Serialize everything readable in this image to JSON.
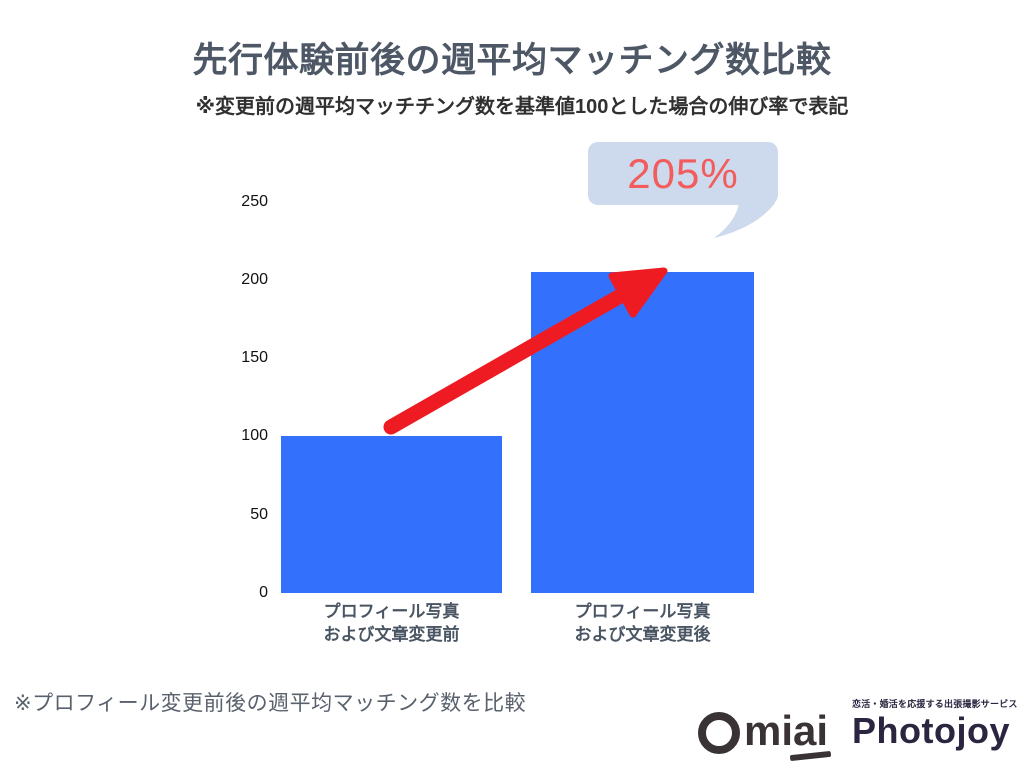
{
  "header": {
    "title": "先行体験前後の週平均マッチング数比較",
    "subtitle": "※変更前の週平均マッチチング数を基準値100とした場合の伸び率で表記"
  },
  "chart_data": {
    "type": "bar",
    "categories": [
      "プロフィール写真 および文章変更前",
      "プロフィール写真 および文章変更後"
    ],
    "category_lines": [
      [
        "プロフィール写真",
        "および文章変更前"
      ],
      [
        "プロフィール写真",
        "および文章変更後"
      ]
    ],
    "values": [
      100,
      205
    ],
    "yticks": [
      250,
      200,
      150,
      100,
      50,
      0
    ],
    "ylim": [
      0,
      250
    ],
    "grid": false,
    "legend": false,
    "annotations": [
      {
        "type": "callout-bubble",
        "text": "205%",
        "target_category": 1
      },
      {
        "type": "arrow",
        "from_category": 0,
        "to_category": 1,
        "meaning": "increase"
      }
    ]
  },
  "callout": {
    "value": "205%"
  },
  "footnote": "※プロフィール変更前後の週平均マッチング数を比較",
  "branding": {
    "omiai_logo": "Omiai",
    "omiai_part_mi": "mi",
    "omiai_part_ai": "ai",
    "photojoy_logo": "Photojoy",
    "photojoy_tagline": "恋活・婚活を応援する出張撮影サービス"
  },
  "colors": {
    "bar": "#3370FB",
    "arrow": "#EE1B23",
    "bubble": "#CDD9EC",
    "bubble-text": "#F25C5C",
    "title": "#4D5765",
    "subtitle": "#303030",
    "axis": "#111111",
    "xlabel": "#4A5663",
    "footnote": "#59616D",
    "omiai": "#3A3335",
    "photojoy": "#2B2540"
  }
}
